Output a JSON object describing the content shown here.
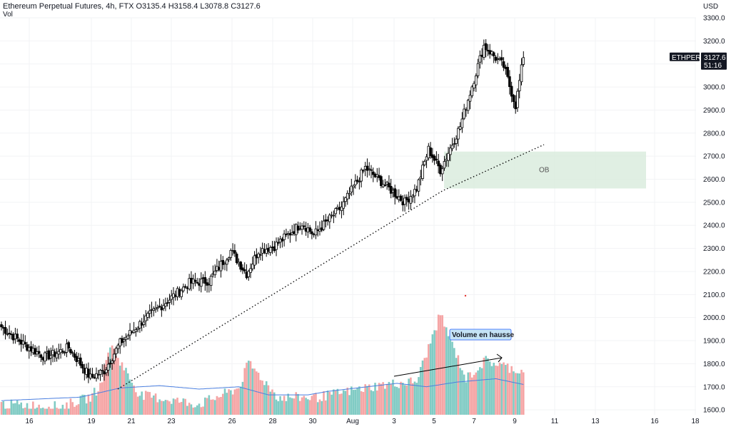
{
  "header": {
    "symbol_line": "Ethereum Perpetual Futures, 4h, FTX  O3135.4  H3158.4  L3078.8  C3127.6",
    "volume_label": "Vol"
  },
  "price_axis": {
    "currency": "USD",
    "ticks": [
      "3300.0",
      "3200.0",
      "3100.0",
      "3000.0",
      "2900.0",
      "2800.0",
      "2700.0",
      "2600.0",
      "2500.0",
      "2400.0",
      "2300.0",
      "2200.0",
      "2100.0",
      "2000.0",
      "1900.0",
      "1800.0",
      "1700.0",
      "1600.0"
    ]
  },
  "time_axis": {
    "ticks": [
      "16",
      "19",
      "21",
      "23",
      "26",
      "28",
      "30",
      "Aug",
      "3",
      "5",
      "7",
      "9",
      "11",
      "13",
      "16",
      "18"
    ]
  },
  "last_price_badge": {
    "symbol": "ETHPERP",
    "price": "3127.6",
    "countdown": "51:16"
  },
  "annotations": {
    "order_block_label": "OB",
    "volume_note": "Volume en hausse"
  },
  "colors": {
    "up": "#ffffff",
    "down": "#000000",
    "wick": "#000000",
    "vol_up": "#80cbc4",
    "vol_down": "#f5a5a5",
    "vol_ma": "#4a7fe0",
    "ob_fill": "#d8ebdc",
    "note_bg": "#c5e3f5",
    "note_border": "#2962ff"
  },
  "chart_data": {
    "type": "candlestick",
    "timeframe": "4h",
    "exchange": "FTX",
    "ylim": [
      1580,
      3340
    ],
    "last_candle": {
      "open": 3135.4,
      "high": 3158.4,
      "low": 3078.8,
      "close": 3127.6
    },
    "keypoints": [
      [
        0,
        1960
      ],
      [
        12,
        1880
      ],
      [
        22,
        1830
      ],
      [
        26,
        1840
      ],
      [
        34,
        1870
      ],
      [
        45,
        1740
      ],
      [
        52,
        1770
      ],
      [
        60,
        1890
      ],
      [
        72,
        1990
      ],
      [
        85,
        2080
      ],
      [
        95,
        2150
      ],
      [
        105,
        2160
      ],
      [
        116,
        2290
      ],
      [
        124,
        2190
      ],
      [
        130,
        2290
      ],
      [
        138,
        2310
      ],
      [
        152,
        2410
      ],
      [
        158,
        2360
      ],
      [
        172,
        2480
      ],
      [
        184,
        2650
      ],
      [
        196,
        2560
      ],
      [
        204,
        2500
      ],
      [
        210,
        2560
      ],
      [
        216,
        2730
      ],
      [
        222,
        2640
      ],
      [
        232,
        2830
      ],
      [
        244,
        3180
      ],
      [
        254,
        3090
      ],
      [
        260,
        2920
      ],
      [
        264,
        3130
      ]
    ],
    "volume_keypoints": [
      [
        0,
        1620
      ],
      [
        30,
        1610
      ],
      [
        45,
        1650
      ],
      [
        50,
        1700
      ],
      [
        55,
        1880
      ],
      [
        70,
        1660
      ],
      [
        100,
        1620
      ],
      [
        120,
        1690
      ],
      [
        125,
        1800
      ],
      [
        140,
        1650
      ],
      [
        160,
        1650
      ],
      [
        190,
        1700
      ],
      [
        210,
        1720
      ],
      [
        222,
        2010
      ],
      [
        235,
        1730
      ],
      [
        245,
        1810
      ],
      [
        264,
        1760
      ]
    ],
    "volume_ma_keypoints": [
      [
        0,
        1640
      ],
      [
        40,
        1655
      ],
      [
        60,
        1695
      ],
      [
        80,
        1705
      ],
      [
        100,
        1690
      ],
      [
        120,
        1700
      ],
      [
        135,
        1665
      ],
      [
        155,
        1665
      ],
      [
        165,
        1680
      ],
      [
        190,
        1705
      ],
      [
        200,
        1715
      ],
      [
        215,
        1700
      ],
      [
        230,
        1720
      ],
      [
        250,
        1735
      ],
      [
        264,
        1710
      ]
    ],
    "trendline": [
      [
        1830,
        1690
      ],
      [
        2550,
        2550
      ],
      [
        2770,
        2750
      ]
    ],
    "order_block": {
      "price_top": 2720,
      "price_bottom": 2560
    }
  }
}
